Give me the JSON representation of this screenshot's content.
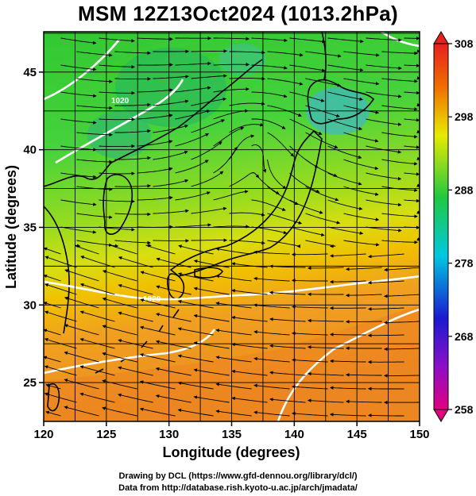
{
  "title": "MSM 12Z13Oct2024 (1013.2hPa)",
  "x_axis": {
    "label": "Longitude (degrees)",
    "range": [
      120,
      150
    ],
    "ticks": [
      "120",
      "125",
      "130",
      "135",
      "140",
      "145",
      "150"
    ]
  },
  "y_axis": {
    "label": "Latitude  (degrees)",
    "range": [
      22.5,
      47.6
    ],
    "ticks": [
      "25",
      "30",
      "35",
      "40",
      "45"
    ]
  },
  "colorbar": {
    "range": [
      258,
      308
    ],
    "ticks": [
      "308",
      "298",
      "288",
      "278",
      "268",
      "258"
    ],
    "colors": [
      "#e20080",
      "#1a1ad0",
      "#00c8e0",
      "#20c840",
      "#e8ea00",
      "#f07000",
      "#e82020"
    ]
  },
  "contours": {
    "color": "#ffffff",
    "labels": [
      "1020",
      "1020"
    ]
  },
  "streamline_color": "#000000",
  "grid": true,
  "credits": {
    "line1": "Drawing by DCL (https://www.gfd-dennou.org/library/dcl/)",
    "line2": "Data from http://database.rish.kyoto-u.ac.jp/arch/jmadata/"
  }
}
